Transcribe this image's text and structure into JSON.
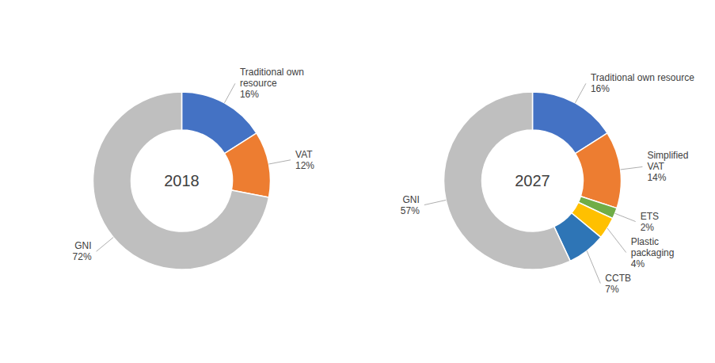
{
  "chart_data": [
    {
      "type": "donut",
      "title": "2018",
      "categories": [
        "Traditional own\nresource",
        "VAT",
        "GNI"
      ],
      "values": [
        16,
        12,
        72
      ],
      "value_labels": [
        "16%",
        "12%",
        "72%"
      ],
      "colors": [
        "#4472c4",
        "#ed7d31",
        "#bfbfbf"
      ],
      "data_labels": true
    },
    {
      "type": "donut",
      "title": "2027",
      "categories": [
        "Traditional own resource",
        "Simplified\nVAT",
        "ETS",
        "Plastic\npackaging",
        "CCTB",
        "GNI"
      ],
      "values": [
        16,
        14,
        2,
        4,
        7,
        57
      ],
      "value_labels": [
        "16%",
        "14%",
        "2%",
        "4%",
        "7%",
        "57%"
      ],
      "colors": [
        "#4472c4",
        "#ed7d31",
        "#70ad47",
        "#ffc000",
        "#2e75b6",
        "#bfbfbf"
      ],
      "data_labels": true
    }
  ]
}
